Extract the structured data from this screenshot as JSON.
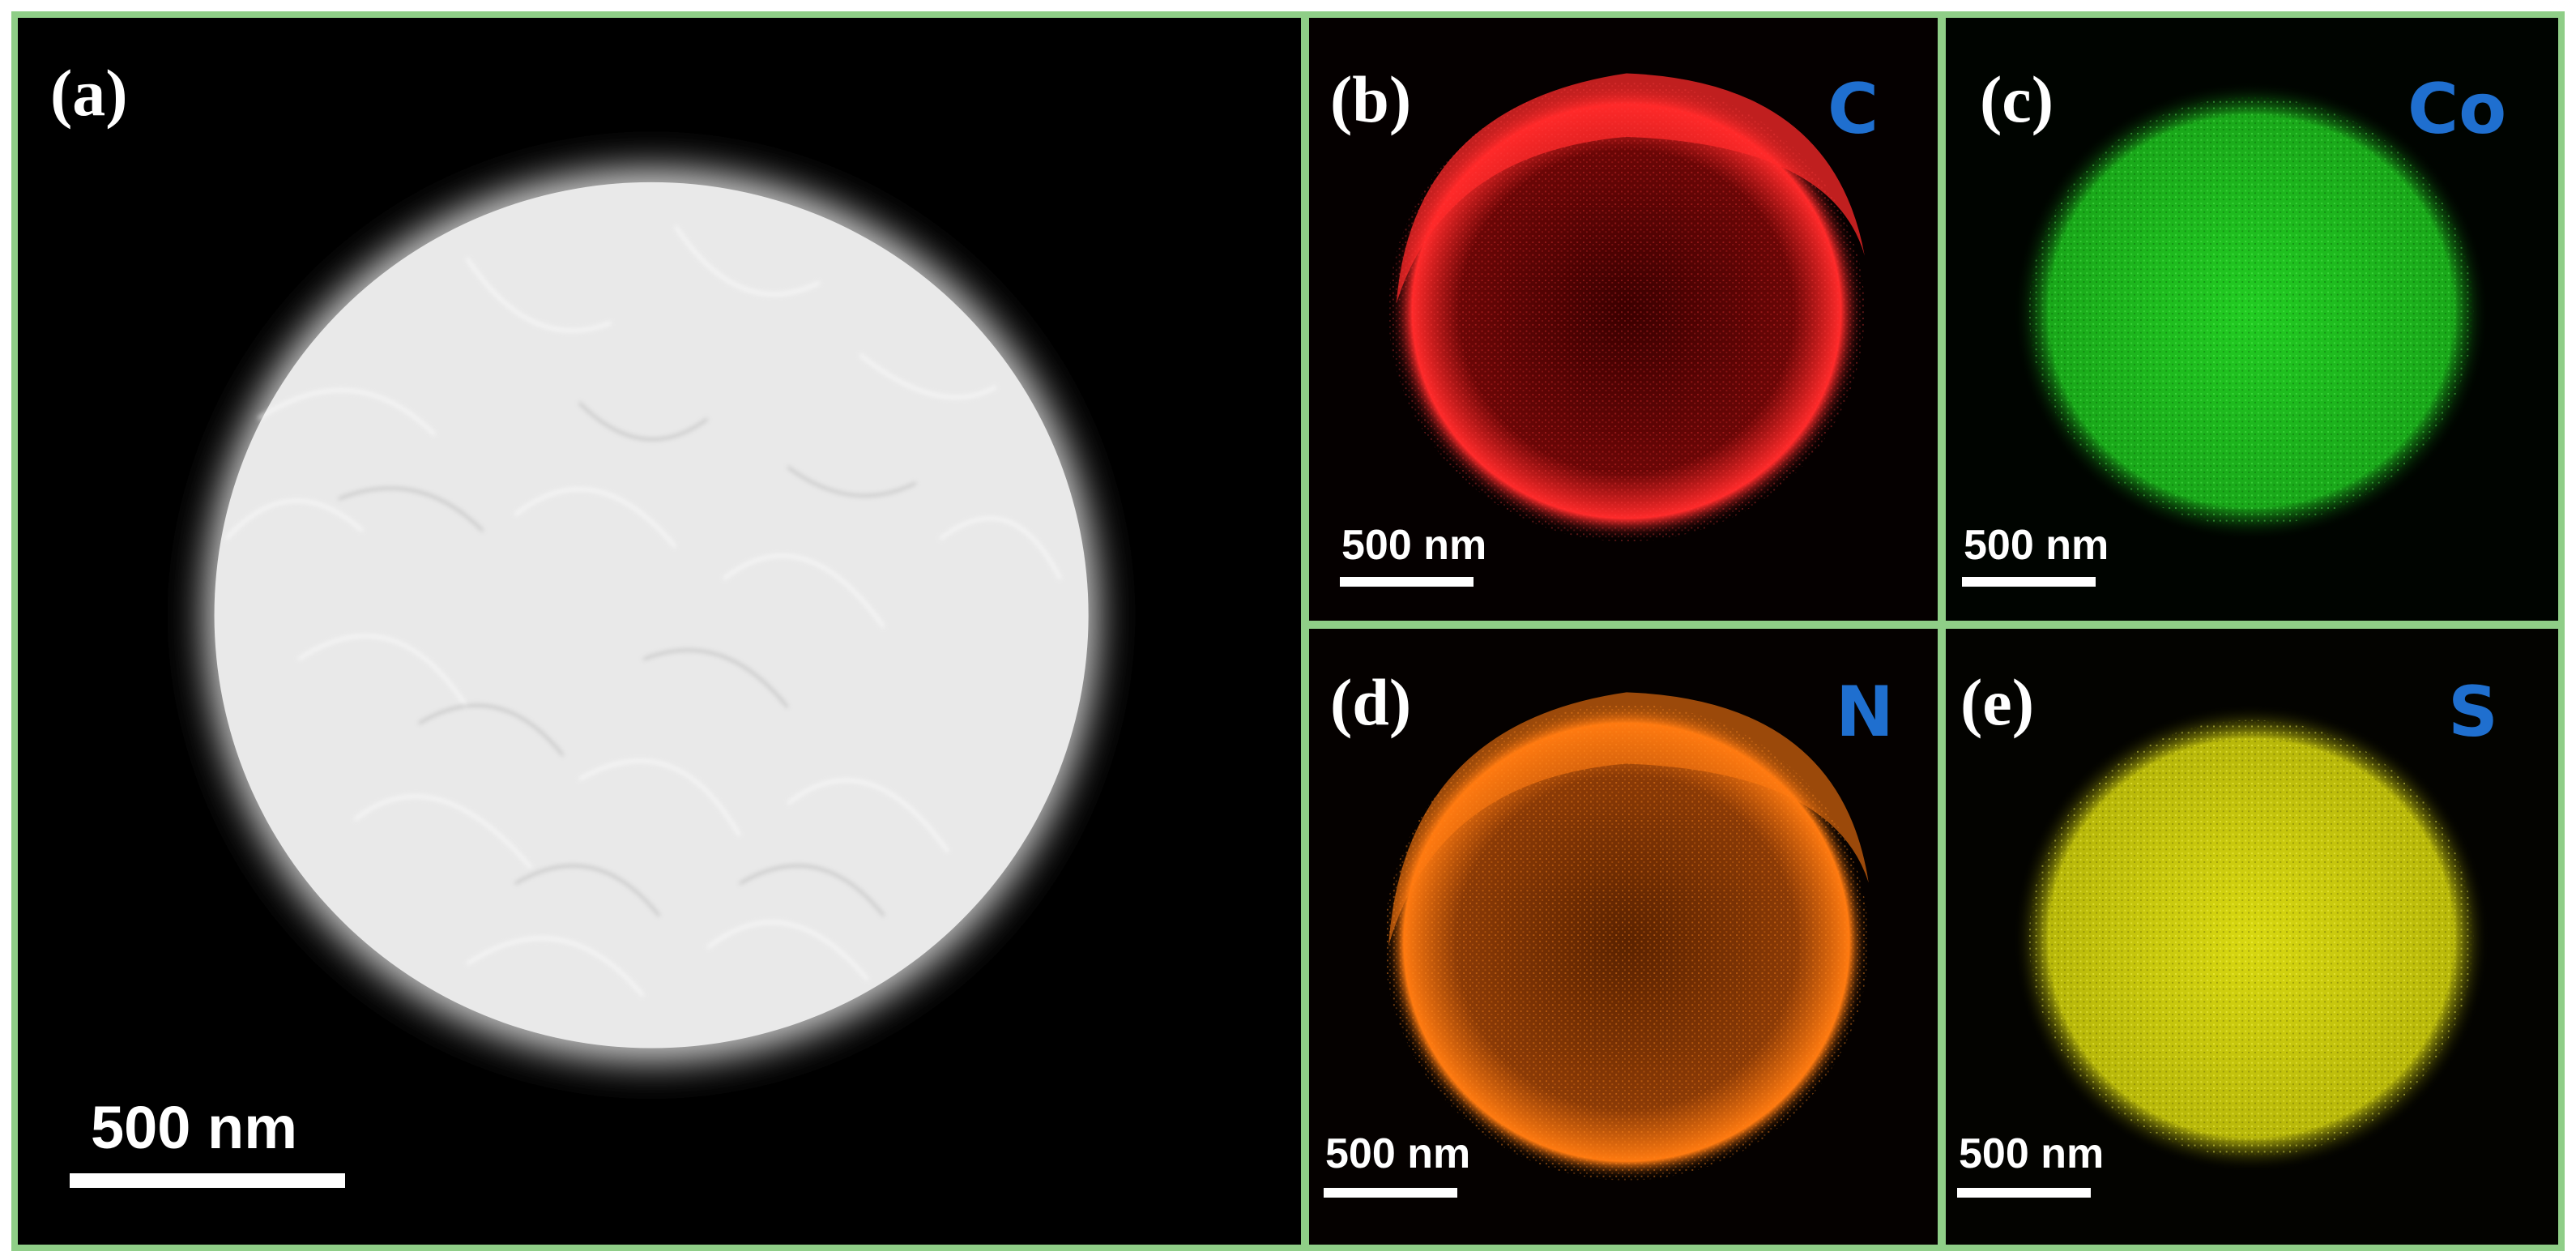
{
  "colors": {
    "border": "#8fce87",
    "element_label": "#1f6fcf",
    "map_c": "#ff2a2a",
    "map_co": "#22cc22",
    "map_n": "#ff7a10",
    "map_s": "#e0e010"
  },
  "panels": [
    {
      "id": "a",
      "label": "(a)",
      "element": "",
      "scale_bar": "500 nm",
      "image": "HAADF-STEM micrograph of particle"
    },
    {
      "id": "b",
      "label": "(b)",
      "element": "C",
      "scale_bar": "500 nm",
      "map_color": "red"
    },
    {
      "id": "c",
      "label": "(c)",
      "element": "Co",
      "scale_bar": "500 nm",
      "map_color": "green"
    },
    {
      "id": "d",
      "label": "(d)",
      "element": "N",
      "scale_bar": "500 nm",
      "map_color": "orange"
    },
    {
      "id": "e",
      "label": "(e)",
      "element": "S",
      "scale_bar": "500 nm",
      "map_color": "yellow"
    }
  ]
}
